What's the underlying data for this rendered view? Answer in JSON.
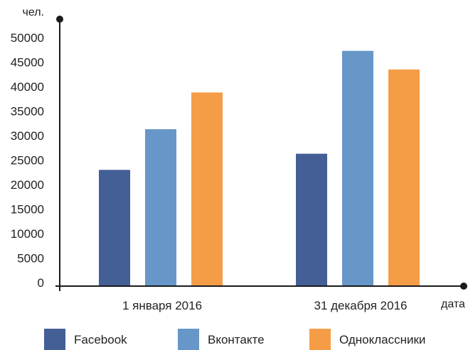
{
  "chart_data": {
    "type": "bar",
    "ylabel": "чел.",
    "xlabel": "дата",
    "ylim": [
      0,
      50000
    ],
    "yticks": [
      0,
      5000,
      10000,
      15000,
      20000,
      25000,
      30000,
      35000,
      40000,
      45000,
      50000
    ],
    "categories": [
      "1 января 2016",
      "31 декабря 2016"
    ],
    "series": [
      {
        "name": "Facebook",
        "color": "#445e96",
        "values": [
          23000,
          26300
        ]
      },
      {
        "name": "Вконтакте",
        "color": "#6697c8",
        "values": [
          31300,
          47300
        ]
      },
      {
        "name": "Одноклассники",
        "color": "#f59c47",
        "values": [
          38800,
          43500
        ]
      }
    ],
    "grid": false,
    "legend_position": "bottom"
  }
}
